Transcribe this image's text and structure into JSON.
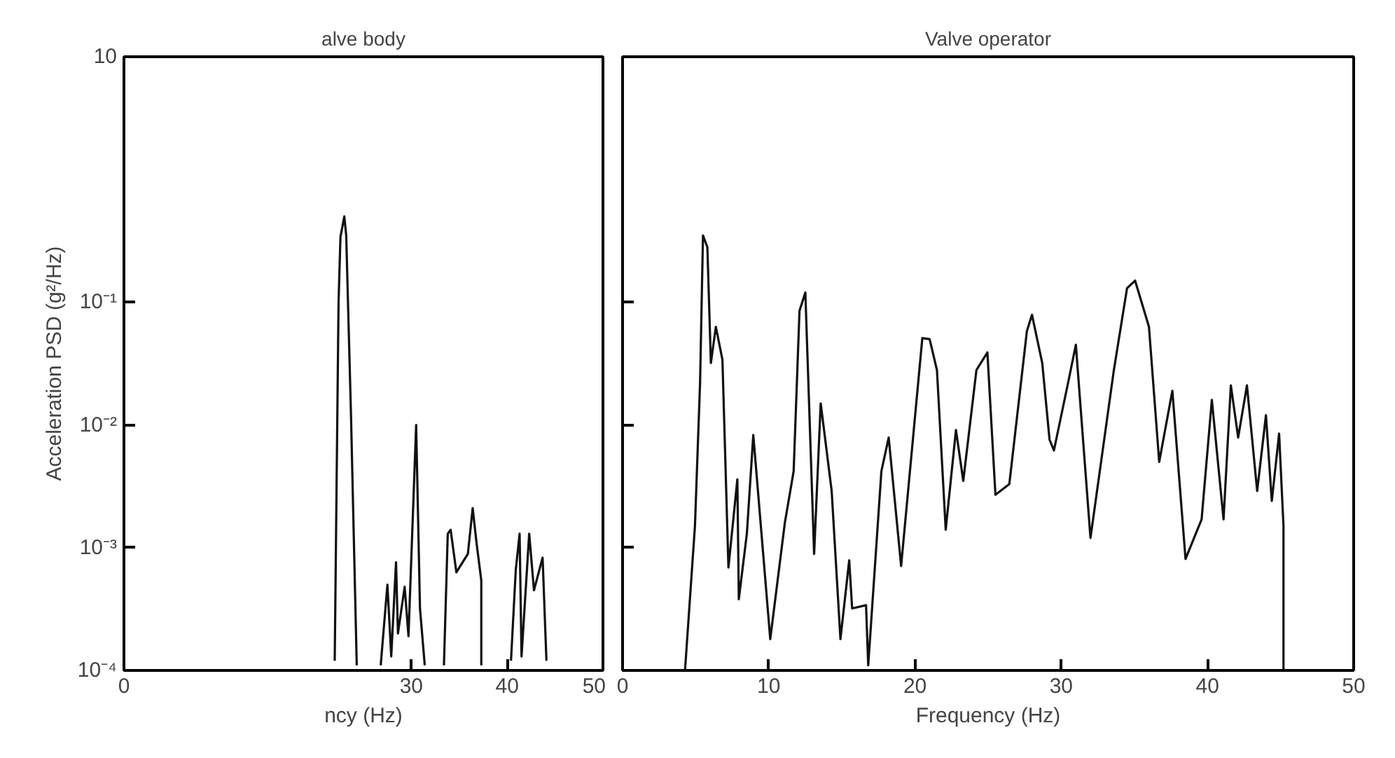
{
  "chart_data": [
    {
      "type": "line",
      "title": "alve body",
      "xlabel": "ncy (Hz)",
      "ylabel": "Acceleration PSD (g²/Hz)",
      "log": true,
      "line_style": "solid",
      "xlim": [
        0,
        50
      ],
      "ylim": [
        0.0001,
        10
      ],
      "xticks": [
        0,
        30,
        40,
        50
      ],
      "yticks": [
        {
          "value": 0.0001,
          "label": "10⁻⁴"
        },
        {
          "value": 0.001,
          "label": "10⁻³"
        },
        {
          "value": 0.01,
          "label": "10⁻²"
        },
        {
          "value": 0.1,
          "label": "10⁻¹"
        },
        {
          "value": 10,
          "label": "10"
        }
      ],
      "series": [
        {
          "color": "#111111",
          "x": [
            22.0,
            22.4,
            22.6,
            23.0,
            23.2,
            23.7,
            24.3,
            null,
            26.8,
            27.5,
            27.9,
            28.4,
            28.6,
            29.3,
            29.7,
            30.5,
            30.9,
            31.4,
            null,
            33.4,
            33.8,
            34.1,
            34.7,
            35.9,
            36.4,
            36.8,
            37.3,
            37.3,
            null,
            40.4,
            40.9,
            41.3,
            41.5,
            42.3,
            42.8,
            43.7,
            44.1
          ],
          "values": [
            0.00012,
            0.1,
            0.34,
            0.5,
            0.35,
            0.012,
            0.00011,
            null,
            0.00011,
            0.0005,
            0.00013,
            0.00076,
            0.0002,
            0.00048,
            0.00019,
            0.01,
            0.00032,
            0.00011,
            null,
            0.00011,
            0.0013,
            0.0014,
            0.00063,
            0.00089,
            0.0021,
            0.0011,
            0.00054,
            0.00011,
            null,
            0.00012,
            0.00066,
            0.0013,
            0.00013,
            0.0013,
            0.00045,
            0.00083,
            0.00012
          ]
        }
      ]
    },
    {
      "type": "line",
      "title": "Valve operator",
      "xlabel": "Frequency (Hz)",
      "log": true,
      "line_style": "solid",
      "tick_labels": "x",
      "xlim": [
        0,
        50
      ],
      "ylim": [
        0.0001,
        10
      ],
      "xticks": [
        0,
        10,
        20,
        30,
        40,
        50
      ],
      "yticks": [
        {
          "value": 0.0001,
          "label": null
        },
        {
          "value": 0.001,
          "label": null
        },
        {
          "value": 0.01,
          "label": null
        },
        {
          "value": 0.1,
          "label": null
        }
      ],
      "series": [
        {
          "color": "#111111",
          "x": [
            4.27,
            4.95,
            5.3,
            5.5,
            5.8,
            6.04,
            6.38,
            6.83,
            7.24,
            7.85,
            7.95,
            8.5,
            8.94,
            10.1,
            11.1,
            11.7,
            12.1,
            12.5,
            13.1,
            13.55,
            14.3,
            14.9,
            15.5,
            15.7,
            16.65,
            16.8,
            17.7,
            18.2,
            19.05,
            20.5,
            21.0,
            21.5,
            22.1,
            22.8,
            23.3,
            24.2,
            24.95,
            25.5,
            26.45,
            27.65,
            28.0,
            28.7,
            29.2,
            29.5,
            30.5,
            31.0,
            32.0,
            33.6,
            34.5,
            35.05,
            36.0,
            36.7,
            37.6,
            38.5,
            39.6,
            40.3,
            41.1,
            41.6,
            42.1,
            42.7,
            43.4,
            44.0,
            44.4,
            44.9,
            45.2,
            45.2
          ],
          "values": [
            0.0001,
            0.0015,
            0.022,
            0.35,
            0.28,
            0.032,
            0.063,
            0.034,
            0.00069,
            0.0036,
            0.00038,
            0.0013,
            0.0083,
            0.00018,
            0.0016,
            0.0042,
            0.085,
            0.12,
            0.00089,
            0.015,
            0.0029,
            0.00018,
            0.00079,
            0.00032,
            0.00034,
            0.00011,
            0.0042,
            0.0079,
            0.00071,
            0.051,
            0.05,
            0.028,
            0.0014,
            0.0091,
            0.0035,
            0.028,
            0.039,
            0.0027,
            0.0033,
            0.058,
            0.079,
            0.032,
            0.0076,
            0.0062,
            0.023,
            0.045,
            0.0012,
            0.028,
            0.13,
            0.15,
            0.063,
            0.005,
            0.019,
            0.00081,
            0.0017,
            0.016,
            0.0017,
            0.021,
            0.0079,
            0.021,
            0.0029,
            0.012,
            0.0024,
            0.0085,
            0.0015,
            0.0001
          ]
        }
      ]
    }
  ]
}
